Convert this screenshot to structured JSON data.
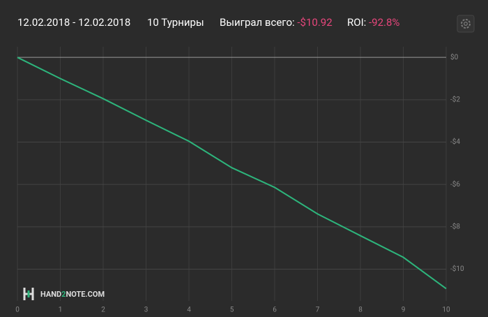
{
  "header": {
    "date_range": "12.02.2018 - 12.02.2018",
    "tournaments": "10 Турниры",
    "won_label": "Выиграл всего:",
    "won_value": "-$10.92",
    "roi_label": "ROI:",
    "roi_value": "-92.8%"
  },
  "logo": {
    "prefix": "HAND",
    "highlight": "2",
    "suffix": "NOTE.COM"
  },
  "chart_data": {
    "type": "line",
    "x": [
      0,
      1,
      2,
      3,
      4,
      5,
      6,
      7,
      8,
      9,
      10
    ],
    "series": [
      {
        "color": "#2db57c",
        "values": [
          0,
          -1.0,
          -1.95,
          -2.97,
          -3.96,
          -5.21,
          -6.14,
          -7.39,
          -8.42,
          -9.44,
          -10.92
        ]
      }
    ],
    "xlim": [
      0,
      10
    ],
    "xticks": [
      0,
      1,
      2,
      3,
      4,
      5,
      6,
      7,
      8,
      9,
      10
    ],
    "ylim": [
      -11.5,
      0.5
    ],
    "yticks": [
      {
        "value": 0,
        "label": "$0"
      },
      {
        "value": -2,
        "label": "-$2"
      },
      {
        "value": -4,
        "label": "-$4"
      },
      {
        "value": -6,
        "label": "-$6"
      },
      {
        "value": -8,
        "label": "-$8"
      },
      {
        "value": -10,
        "label": "-$10"
      }
    ],
    "grid": true
  }
}
